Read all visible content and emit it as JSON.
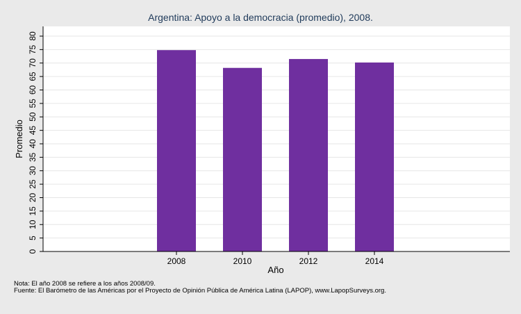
{
  "chart_data": {
    "type": "bar",
    "title": "Argentina: Apoyo a la democracia (promedio), 2008.",
    "xlabel": "Año",
    "ylabel": "Promedio",
    "categories": [
      "2008",
      "2010",
      "2012",
      "2014"
    ],
    "values": [
      74.8,
      68.2,
      71.5,
      70.2
    ],
    "ylim": [
      0,
      80
    ],
    "yticks": [
      0,
      5,
      10,
      15,
      20,
      25,
      30,
      35,
      40,
      45,
      50,
      55,
      60,
      65,
      70,
      75,
      80
    ],
    "bar_color": "#6f2f9f",
    "grid": true,
    "legend": "none"
  },
  "notes": {
    "nota": "Nota: El año 2008 se refiere a los años 2008/09.",
    "fuente": "Fuente: El Barómetro de las Américas por el Proyecto de Opinión Pública de América Latina (LAPOP), www.LapopSurveys.org."
  }
}
